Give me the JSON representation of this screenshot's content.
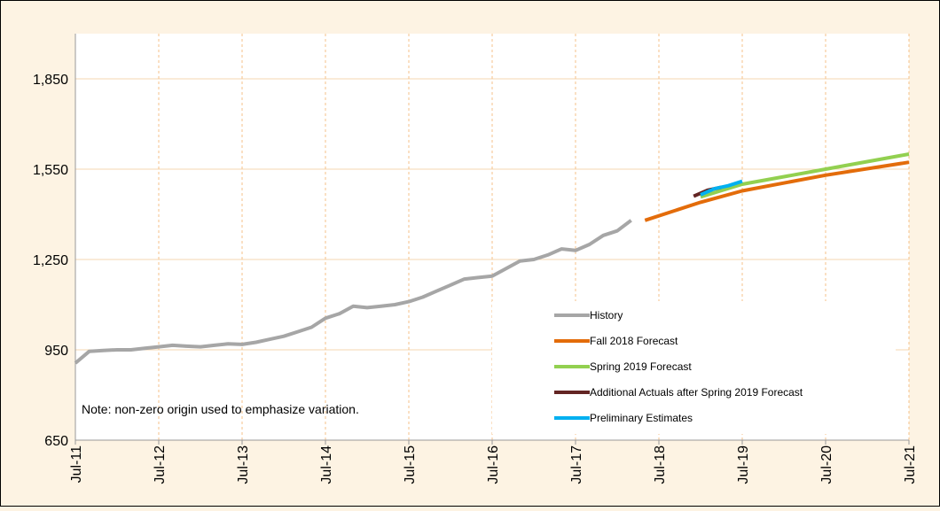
{
  "chart_data": {
    "type": "line",
    "note": "Note: non-zero origin used to emphasize variation.",
    "xlim": [
      "2011-07",
      "2021-07"
    ],
    "xticks": [
      {
        "value": "2011-07",
        "label": "Jul-11"
      },
      {
        "value": "2012-07",
        "label": "Jul-12"
      },
      {
        "value": "2013-07",
        "label": "Jul-13"
      },
      {
        "value": "2014-07",
        "label": "Jul-14"
      },
      {
        "value": "2015-07",
        "label": "Jul-15"
      },
      {
        "value": "2016-07",
        "label": "Jul-16"
      },
      {
        "value": "2017-07",
        "label": "Jul-17"
      },
      {
        "value": "2018-07",
        "label": "Jul-18"
      },
      {
        "value": "2019-07",
        "label": "Jul-19"
      },
      {
        "value": "2020-07",
        "label": "Jul-20"
      },
      {
        "value": "2021-07",
        "label": "Jul-21"
      }
    ],
    "ylim": [
      650,
      2000
    ],
    "yticks": [
      650,
      {
        "value": 950,
        "label": "950"
      },
      {
        "value": 1250,
        "label": "1,250"
      },
      {
        "value": 1550,
        "label": "1,550"
      },
      {
        "value": 1850,
        "label": "1,850"
      }
    ],
    "grid": true,
    "series": [
      {
        "name": "History",
        "color": "#a6a6a6",
        "x": [
          "2011-07",
          "2011-09",
          "2011-11",
          "2012-01",
          "2012-03",
          "2012-05",
          "2012-07",
          "2012-09",
          "2012-11",
          "2013-01",
          "2013-03",
          "2013-05",
          "2013-07",
          "2013-09",
          "2013-11",
          "2014-01",
          "2014-03",
          "2014-05",
          "2014-07",
          "2014-09",
          "2014-11",
          "2015-01",
          "2015-03",
          "2015-05",
          "2015-07",
          "2015-09",
          "2015-11",
          "2016-01",
          "2016-03",
          "2016-05",
          "2016-07",
          "2016-09",
          "2016-11",
          "2017-01",
          "2017-03",
          "2017-05",
          "2017-07",
          "2017-09",
          "2017-11",
          "2018-01",
          "2018-03"
        ],
        "values": [
          906,
          945,
          948,
          950,
          950,
          955,
          960,
          965,
          962,
          960,
          965,
          970,
          968,
          975,
          985,
          995,
          1010,
          1025,
          1055,
          1070,
          1095,
          1090,
          1095,
          1100,
          1110,
          1125,
          1145,
          1165,
          1185,
          1190,
          1195,
          1220,
          1245,
          1250,
          1265,
          1285,
          1280,
          1300,
          1330,
          1345,
          1380
        ]
      },
      {
        "name": "Fall 2018 Forecast",
        "color": "#e36c0a",
        "x": [
          "2018-05",
          "2019-01",
          "2019-07",
          "2020-07",
          "2021-07"
        ],
        "values": [
          1380,
          1440,
          1478,
          1530,
          1573
        ]
      },
      {
        "name": "Spring 2019 Forecast",
        "color": "#92d050",
        "x": [
          "2019-01",
          "2019-07",
          "2020-07",
          "2021-07"
        ],
        "values": [
          1458,
          1500,
          1550,
          1600
        ]
      },
      {
        "name": "Additional Actuals after Spring 2019 Forecast",
        "color": "#632523",
        "x": [
          "2018-12",
          "2019-02",
          "2019-04"
        ],
        "values": [
          1460,
          1480,
          1490
        ]
      },
      {
        "name": "Preliminary Estimates",
        "color": "#00b0f0",
        "x": [
          "2019-01",
          "2019-03",
          "2019-05",
          "2019-07"
        ],
        "values": [
          1465,
          1485,
          1495,
          1510
        ]
      }
    ]
  }
}
